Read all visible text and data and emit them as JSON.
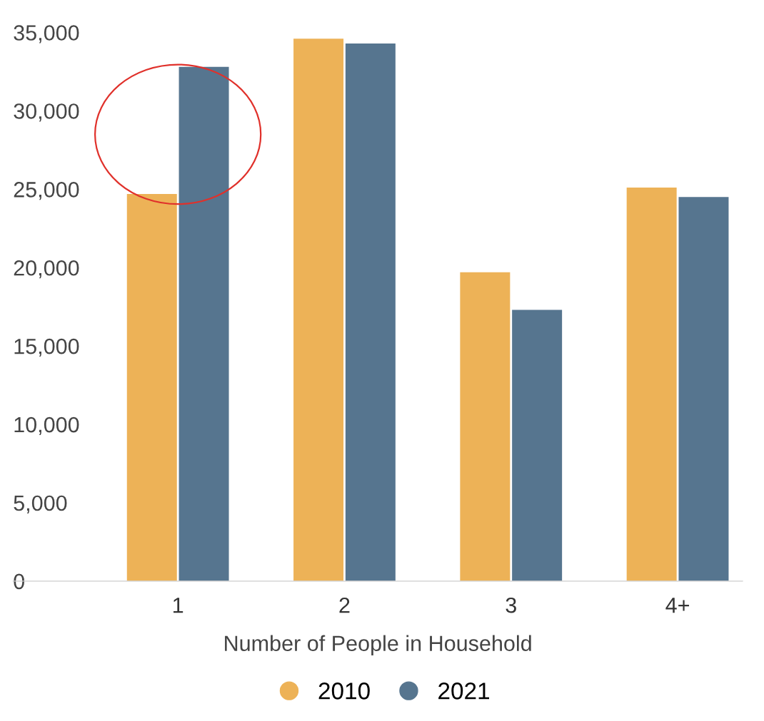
{
  "chart_data": {
    "type": "bar",
    "xlabel": "Number of People in Household",
    "categories": [
      "1",
      "2",
      "3",
      "4+"
    ],
    "series": [
      {
        "name": "2010",
        "color": "#edb257",
        "values": [
          24700,
          34600,
          19700,
          25100
        ]
      },
      {
        "name": "2021",
        "color": "#56758f",
        "values": [
          32800,
          34300,
          17300,
          24500
        ]
      }
    ],
    "ylim": [
      0,
      35000
    ],
    "yticks": [
      {
        "value": 0,
        "label": "0"
      },
      {
        "value": 5000,
        "label": "5,000"
      },
      {
        "value": 10000,
        "label": "10,000"
      },
      {
        "value": 15000,
        "label": "15,000"
      },
      {
        "value": 20000,
        "label": "20,000"
      },
      {
        "value": 25000,
        "label": "25,000"
      },
      {
        "value": 30000,
        "label": "30,000"
      },
      {
        "value": 35000,
        "label": "35,000"
      }
    ],
    "grid": false,
    "legend": "bottom"
  }
}
